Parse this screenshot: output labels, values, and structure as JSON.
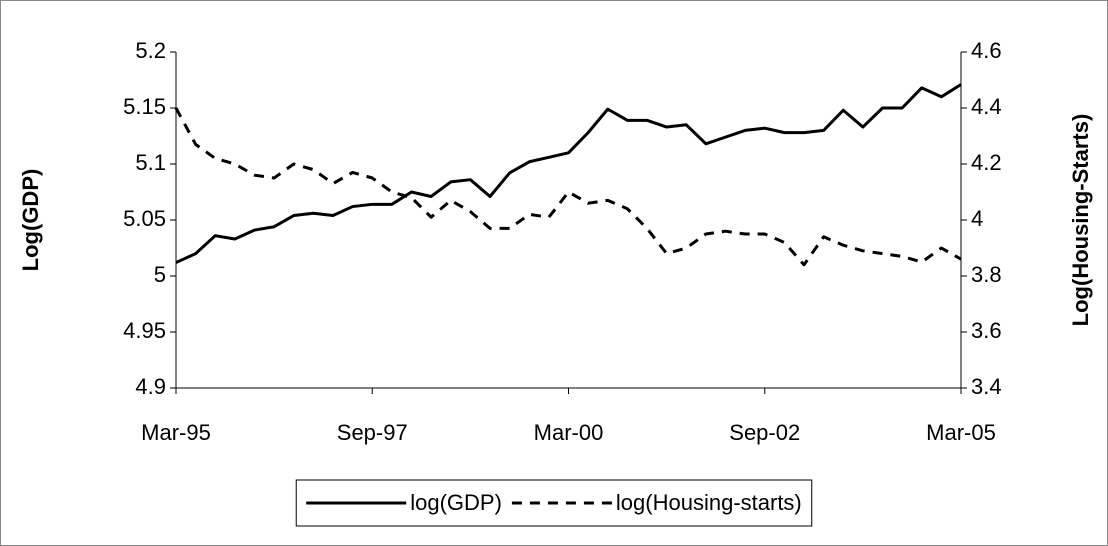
{
  "chart_data": {
    "type": "line",
    "categories": [
      "Mar-95",
      null,
      null,
      null,
      null,
      null,
      null,
      null,
      null,
      null,
      "Sep-97",
      null,
      null,
      null,
      null,
      null,
      null,
      null,
      null,
      null,
      "Mar-00",
      null,
      null,
      null,
      null,
      null,
      null,
      null,
      null,
      null,
      "Sep-02",
      null,
      null,
      null,
      null,
      null,
      null,
      null,
      null,
      null,
      "Mar-05"
    ],
    "series": [
      {
        "name": "log(GDP)",
        "color": "#000000",
        "dash": false,
        "values": [
          5.012,
          5.02,
          5.036,
          5.033,
          5.041,
          5.044,
          5.054,
          5.056,
          5.054,
          5.062,
          5.064,
          5.064,
          5.075,
          5.071,
          5.084,
          5.086,
          5.071,
          5.092,
          5.102,
          5.106,
          5.11,
          5.128,
          5.149,
          5.139,
          5.139,
          5.133,
          5.135,
          5.118,
          5.124,
          5.13,
          5.132,
          5.128,
          5.128,
          5.13,
          5.148,
          5.133,
          5.15,
          5.15,
          5.168,
          5.16,
          5.171
        ]
      },
      {
        "name": "log(Housing-starts)",
        "color": "#000000",
        "dash": true,
        "axis": "y2",
        "values": [
          4.4,
          4.27,
          4.22,
          4.2,
          4.16,
          4.15,
          4.2,
          4.18,
          4.13,
          4.17,
          4.15,
          4.1,
          4.08,
          4.01,
          4.07,
          4.03,
          3.97,
          3.97,
          4.02,
          4.01,
          4.1,
          4.06,
          4.07,
          4.04,
          3.97,
          3.88,
          3.9,
          3.95,
          3.96,
          3.95,
          3.95,
          3.92,
          3.84,
          3.94,
          3.91,
          3.89,
          3.88,
          3.87,
          3.85,
          3.9,
          3.86
        ]
      }
    ],
    "y_label": "Log(GDP)",
    "y2_label": "Log(Housing-Starts)",
    "ylim": [
      4.9,
      5.2
    ],
    "yticks": [
      4.9,
      4.95,
      5,
      5.05,
      5.1,
      5.15,
      5.2
    ],
    "y2lim": [
      3.4,
      4.6
    ],
    "y2ticks": [
      3.4,
      3.6,
      3.8,
      4,
      4.2,
      4.4,
      4.6
    ],
    "grid": false,
    "legend": "bottom"
  }
}
